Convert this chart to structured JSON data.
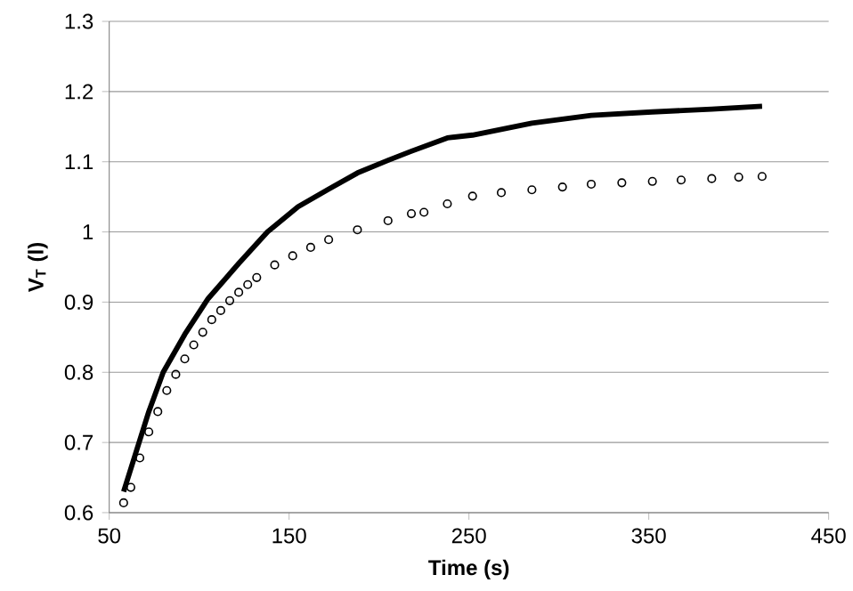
{
  "chart_data": {
    "type": "line",
    "xlabel": "Time (s)",
    "ylabel": "V$_{T}$ (l)",
    "xlim": [
      50,
      450
    ],
    "xticks": [
      50,
      150,
      250,
      350,
      450
    ],
    "ylim": [
      0.6,
      1.3
    ],
    "yticks": [
      0.6,
      0.7,
      0.8,
      0.9,
      1,
      1.1,
      1.2,
      1.3
    ],
    "grid": "y",
    "series": [
      {
        "marker": "none",
        "color": "#000000",
        "x": [
          58,
          72,
          80,
          92,
          105,
          122,
          138,
          155,
          172,
          188,
          205,
          218,
          238,
          252,
          285,
          318,
          352,
          385,
          413
        ],
        "values": [
          0.63,
          0.744,
          0.8,
          0.854,
          0.905,
          0.955,
          1.0,
          1.036,
          1.061,
          1.084,
          1.102,
          1.115,
          1.134,
          1.138,
          1.155,
          1.166,
          1.171,
          1.175,
          1.179
        ]
      },
      {
        "type": "scatter",
        "marker": "circle",
        "color": "#000000",
        "x": [
          58,
          62,
          67,
          72,
          77,
          82,
          87,
          92,
          97,
          102,
          107,
          112,
          117,
          122,
          127,
          132,
          142,
          152,
          162,
          172,
          188,
          205,
          218,
          225,
          238,
          252,
          268,
          285,
          302,
          318,
          335,
          352,
          368,
          385,
          400,
          413
        ],
        "values": [
          0.614,
          0.636,
          0.678,
          0.715,
          0.744,
          0.774,
          0.797,
          0.819,
          0.839,
          0.857,
          0.875,
          0.888,
          0.902,
          0.914,
          0.925,
          0.935,
          0.953,
          0.966,
          0.978,
          0.989,
          1.003,
          1.016,
          1.026,
          1.028,
          1.04,
          1.051,
          1.056,
          1.06,
          1.064,
          1.068,
          1.07,
          1.072,
          1.074,
          1.076,
          1.078,
          1.079
        ]
      }
    ]
  }
}
